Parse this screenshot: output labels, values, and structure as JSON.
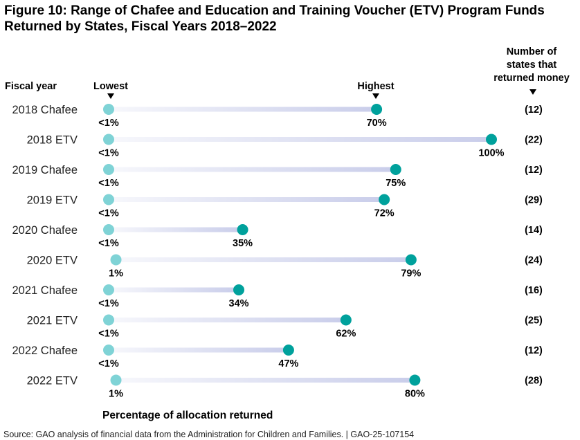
{
  "title": "Figure 10: Range of Chafee and Education and Training Voucher (ETV) Program Funds Returned by States, Fiscal Years 2018–2022",
  "chart_data": {
    "type": "dumbbell",
    "title": "Figure 10: Range of Chafee and Education and Training Voucher (ETV) Program Funds Returned by States, Fiscal Years 2018–2022",
    "row_header": "Fiscal year",
    "low_header": "Lowest",
    "high_header": "Highest",
    "count_header": [
      "Number of",
      "states that",
      "returned money"
    ],
    "xlabel": "Percentage of allocation returned",
    "xlim": [
      0,
      100
    ],
    "colors": {
      "low": "#7fd3d6",
      "high": "#00a19c",
      "bar": "#c9cdea"
    },
    "rows": [
      {
        "label": "2018 Chafee",
        "low": 0,
        "low_label": "<1%",
        "high": 70,
        "high_label": "70%",
        "count": "(12)"
      },
      {
        "label": "2018 ETV",
        "low": 0,
        "low_label": "<1%",
        "high": 100,
        "high_label": "100%",
        "count": "(22)"
      },
      {
        "label": "2019 Chafee",
        "low": 0,
        "low_label": "<1%",
        "high": 75,
        "high_label": "75%",
        "count": "(12)"
      },
      {
        "label": "2019 ETV",
        "low": 0,
        "low_label": "<1%",
        "high": 72,
        "high_label": "72%",
        "count": "(29)"
      },
      {
        "label": "2020 Chafee",
        "low": 0,
        "low_label": "<1%",
        "high": 35,
        "high_label": "35%",
        "count": "(14)"
      },
      {
        "label": "2020 ETV",
        "low": 1,
        "low_label": "1%",
        "high": 79,
        "high_label": "79%",
        "count": "(24)"
      },
      {
        "label": "2021 Chafee",
        "low": 0,
        "low_label": "<1%",
        "high": 34,
        "high_label": "34%",
        "count": "(16)"
      },
      {
        "label": "2021 ETV",
        "low": 0,
        "low_label": "<1%",
        "high": 62,
        "high_label": "62%",
        "count": "(25)"
      },
      {
        "label": "2022 Chafee",
        "low": 0,
        "low_label": "<1%",
        "high": 47,
        "high_label": "47%",
        "count": "(12)"
      },
      {
        "label": "2022 ETV",
        "low": 1,
        "low_label": "1%",
        "high": 80,
        "high_label": "80%",
        "count": "(28)"
      }
    ]
  },
  "source": "Source: GAO analysis of financial data from the Administration for Children and Families.  |  GAO-25-107154"
}
